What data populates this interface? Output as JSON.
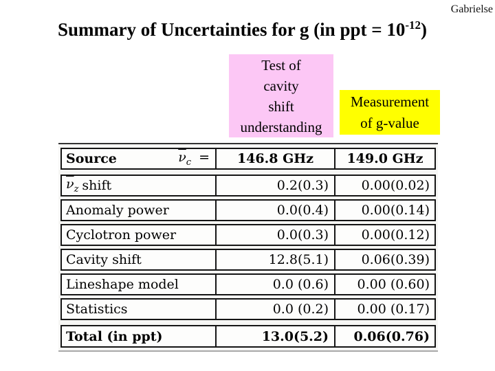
{
  "page": {
    "author": "Gabrielse",
    "background_color": "#ffffff"
  },
  "title": {
    "prefix": "Summary of Uncertainties for g (in ppt = 10",
    "superscript": "-12",
    "suffix": ")"
  },
  "callouts": {
    "cavity_test": {
      "background_color": "#fcc7f5",
      "lines": [
        "Test of",
        "cavity",
        "shift",
        "understanding"
      ]
    },
    "g_measurement": {
      "background_color": "#ffff00",
      "lines": [
        "Measurement",
        "of g-value"
      ]
    }
  },
  "table": {
    "background_color": "#f6f6f4",
    "border_color": "#151515",
    "header": {
      "source_label": "Source",
      "nu_glyph": "ν",
      "nu_subscript": "c",
      "equals_sign": "=",
      "freq_col_146": "146.8 GHz",
      "freq_col_149": "149.0 GHz"
    },
    "rows": [
      {
        "nu_subscript": "z",
        "label": "shift",
        "v146": "0.2(0.3)",
        "v149": "0.00(0.02)"
      },
      {
        "label": "Anomaly power",
        "v146": "0.0(0.4)",
        "v149": "0.00(0.14)"
      },
      {
        "label": "Cyclotron power",
        "v146": "0.0(0.3)",
        "v149": "0.00(0.12)"
      },
      {
        "label": "Cavity shift",
        "v146": "12.8(5.1)",
        "v149": "0.06(0.39)"
      },
      {
        "label": "Lineshape model",
        "v146": "0.0 (0.6)",
        "v149": "0.00 (0.60)"
      },
      {
        "label": "Statistics",
        "v146": "0.0 (0.2)",
        "v149": "0.00 (0.17)"
      }
    ],
    "total_row": {
      "label": "Total (in ppt)",
      "v146": "13.0(5.2)",
      "v149": "0.06(0.76)"
    }
  }
}
